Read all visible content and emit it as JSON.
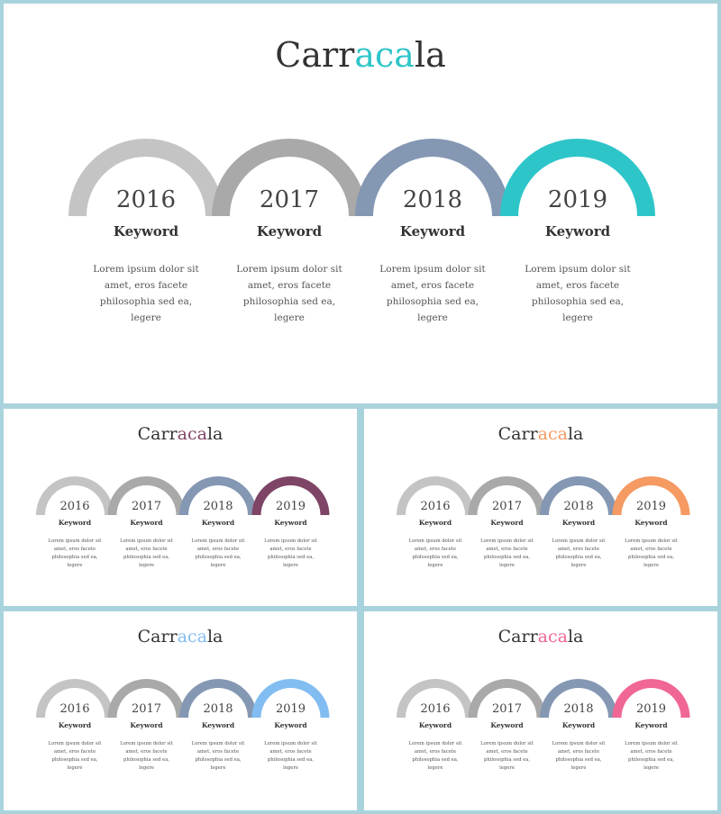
{
  "title": {
    "part1": "Carr",
    "part2": "aca",
    "part3": "la"
  },
  "items": [
    {
      "year": "2016",
      "keyword": "Keyword",
      "desc": [
        "Lorem ipsum dolor sit",
        "amet, eros facete",
        "philosophia  sed ea,",
        "legere"
      ]
    },
    {
      "year": "2017",
      "keyword": "Keyword",
      "desc": [
        "Lorem ipsum dolor sit",
        "amet, eros facete",
        "philosophia  sed ea,",
        "legere"
      ]
    },
    {
      "year": "2018",
      "keyword": "Keyword",
      "desc": [
        "Lorem ipsum dolor sit",
        "amet, eros facete",
        "philosophia  sed ea,",
        "legere"
      ]
    },
    {
      "year": "2019",
      "keyword": "Keyword",
      "desc": [
        "Lorem ipsum dolor sit",
        "amet, eros facete",
        "philosophia  sed ea,",
        "legere"
      ]
    }
  ],
  "colors": {
    "arc_2016": "#c4c4c4",
    "arc_2017": "#a9a9a9",
    "arc_2018": "#8497b3",
    "border": "#a9d3dc"
  },
  "slides": [
    {
      "name": "main",
      "accent": "#2ec5c9"
    },
    {
      "name": "plum",
      "accent": "#7e4566"
    },
    {
      "name": "orange",
      "accent": "#f59a62"
    },
    {
      "name": "blue",
      "accent": "#82bdf2"
    },
    {
      "name": "pink",
      "accent": "#f06695"
    }
  ]
}
